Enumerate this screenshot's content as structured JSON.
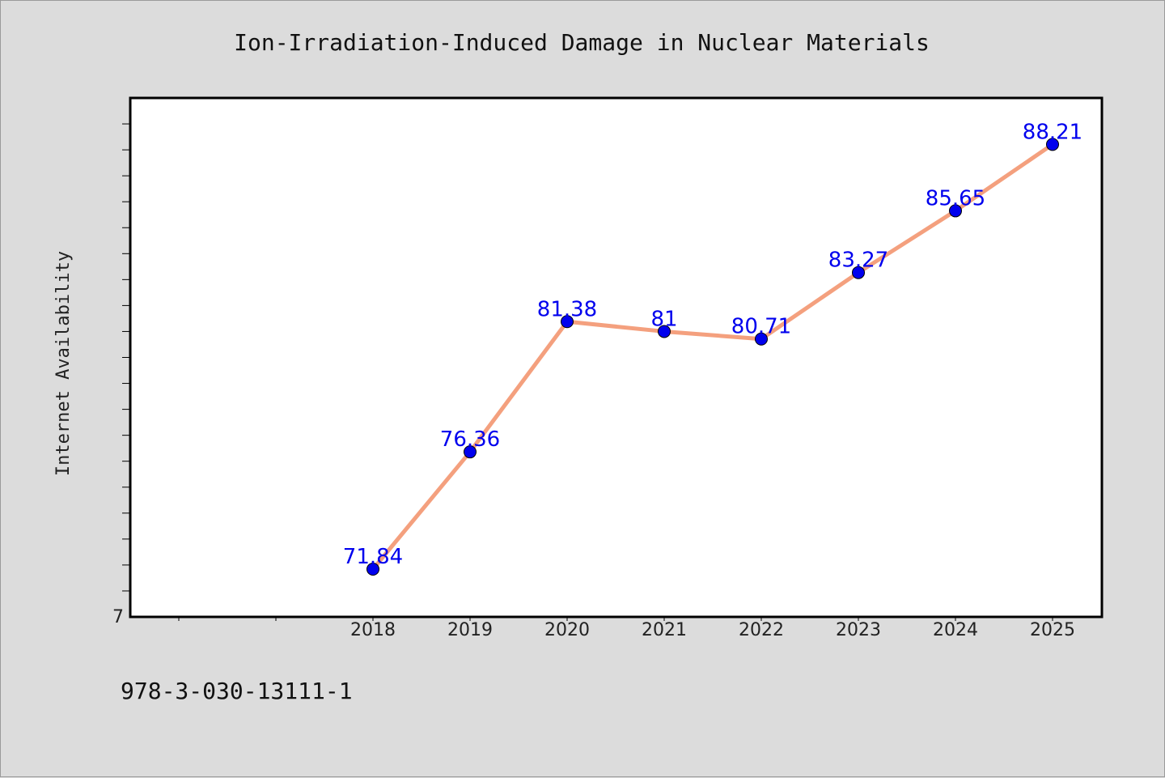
{
  "chart_data": {
    "type": "line",
    "title": "Ion-Irradiation-Induced Damage in Nuclear Materials",
    "ylabel": "Internet Availability",
    "xlabel": "",
    "x": [
      "2018",
      "2019",
      "2020",
      "2021",
      "2022",
      "2023",
      "2024",
      "2025"
    ],
    "series": [
      {
        "values": [
          71.84,
          76.36,
          81.38,
          81,
          80.71,
          83.27,
          85.65,
          88.21
        ],
        "labels": [
          "71.84",
          "76.36",
          "81.38",
          "81",
          "80.71",
          "83.27",
          "85.65",
          "88.21"
        ]
      }
    ],
    "ylim": [
      70,
      90
    ],
    "y_tick_labels": [
      "7"
    ],
    "line_color": "#f4a07e",
    "marker_color": "#0000ee",
    "label_color": "#0000ee",
    "plot_background": "#ffffff",
    "page_background": "#dcdcdc",
    "grid": false
  },
  "footer": {
    "text": "978-3-030-13111-1"
  }
}
